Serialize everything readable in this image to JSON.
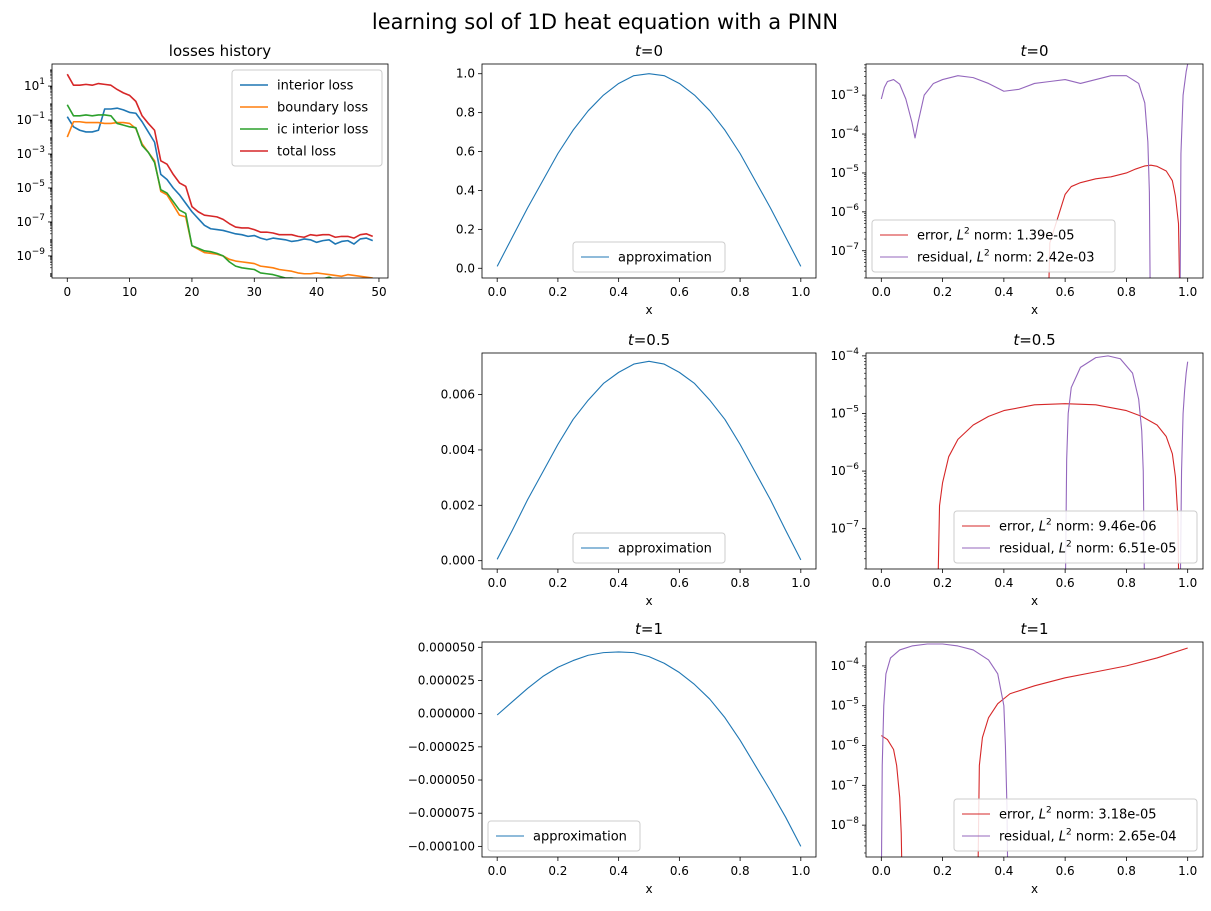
{
  "suptitle": "learning sol of 1D heat equation with a PINN",
  "colors": {
    "blue": "#1f77b4",
    "orange": "#ff7f0e",
    "green": "#2ca02c",
    "red": "#d62728",
    "purple": "#9467bd"
  },
  "chart_data": [
    {
      "id": "losses",
      "type": "line",
      "title": "losses history",
      "xlabel": "",
      "ylabel": "",
      "yscale": "log",
      "xlim": [
        -2.45,
        51.45
      ],
      "ylim_exp": [
        -10.3,
        2.3
      ],
      "xticks": [
        0,
        10,
        20,
        30,
        40,
        50
      ],
      "yticks_exp": [
        1,
        -1,
        -3,
        -5,
        -7,
        -9
      ],
      "legend_loc": "upper right",
      "grid": false,
      "series": [
        {
          "name": "interior loss",
          "color": "#1f77b4",
          "log10_values": [
            -0.8,
            -1.4,
            -1.6,
            -1.7,
            -1.7,
            -1.6,
            -0.35,
            -0.35,
            -0.3,
            -0.4,
            -0.55,
            -0.6,
            -1.1,
            -1.7,
            -2.3,
            -4.2,
            -4.5,
            -5.0,
            -5.4,
            -5.9,
            -6.4,
            -6.8,
            -7.2,
            -7.4,
            -7.45,
            -7.5,
            -7.6,
            -7.7,
            -7.75,
            -7.85,
            -7.8,
            -7.95,
            -8.05,
            -7.95,
            -8.0,
            -8.05,
            -8.15,
            -8.1,
            -8.0,
            -8.05,
            -8.2,
            -8.1,
            -8.05,
            -8.3,
            -8.15,
            -8.1,
            -8.3,
            -8.0,
            -7.95,
            -8.1
          ]
        },
        {
          "name": "boundary loss",
          "color": "#ff7f0e",
          "log10_values": [
            -2.0,
            -1.1,
            -1.1,
            -1.15,
            -1.15,
            -1.15,
            -1.2,
            -1.2,
            -1.15,
            -1.15,
            -1.2,
            -1.5,
            -2.4,
            -2.9,
            -3.4,
            -5.2,
            -5.4,
            -6.0,
            -6.6,
            -6.7,
            -8.4,
            -8.6,
            -8.8,
            -8.85,
            -8.9,
            -9.0,
            -9.2,
            -9.3,
            -9.35,
            -9.4,
            -9.45,
            -9.6,
            -9.65,
            -9.7,
            -9.8,
            -9.85,
            -9.9,
            -10.0,
            -10.05,
            -10.05,
            -10.0,
            -10.05,
            -10.1,
            -10.15,
            -10.2,
            -10.1,
            -10.15,
            -10.2,
            -10.25,
            -10.3
          ]
        },
        {
          "name": "ic interior loss",
          "color": "#2ca02c",
          "log10_values": [
            -0.1,
            -0.75,
            -0.75,
            -0.7,
            -0.75,
            -0.7,
            -0.7,
            -0.75,
            -1.2,
            -1.3,
            -1.4,
            -1.45,
            -2.5,
            -2.9,
            -3.5,
            -5.1,
            -5.3,
            -5.8,
            -6.3,
            -6.5,
            -8.4,
            -8.55,
            -8.7,
            -8.75,
            -8.85,
            -9.0,
            -9.35,
            -9.6,
            -9.7,
            -9.75,
            -9.8,
            -10.0,
            -10.05,
            -10.1,
            -10.2,
            -10.3,
            -10.3,
            -10.35,
            -10.45,
            -10.5,
            -10.45,
            -10.35,
            -10.25,
            -10.4,
            -10.55,
            -10.6,
            -10.6,
            -10.6,
            -10.55,
            -10.6
          ]
        },
        {
          "name": "total loss",
          "color": "#d62728",
          "log10_values": [
            1.7,
            1.05,
            1.05,
            1.1,
            1.05,
            1.15,
            1.1,
            1.05,
            0.8,
            0.6,
            0.45,
            0.1,
            -0.75,
            -1.2,
            -1.6,
            -3.4,
            -3.6,
            -4.2,
            -4.7,
            -4.9,
            -6.1,
            -6.4,
            -6.6,
            -6.65,
            -6.7,
            -6.85,
            -7.1,
            -7.3,
            -7.35,
            -7.35,
            -7.45,
            -7.6,
            -7.6,
            -7.65,
            -7.75,
            -7.75,
            -7.75,
            -7.85,
            -7.9,
            -7.75,
            -7.8,
            -7.75,
            -7.75,
            -7.9,
            -7.85,
            -7.85,
            -7.95,
            -7.75,
            -7.7,
            -7.85
          ]
        }
      ]
    },
    {
      "id": "approx_t0",
      "type": "line",
      "title_var": "t",
      "title_val": "=0",
      "xlabel": "x",
      "ylabel": "",
      "xlim": [
        -0.05,
        1.05
      ],
      "ylim": [
        -0.05,
        1.05
      ],
      "xticks": [
        0.0,
        0.2,
        0.4,
        0.6,
        0.8,
        1.0
      ],
      "yticks": [
        0.0,
        0.2,
        0.4,
        0.6,
        0.8,
        1.0
      ],
      "xtick_labels": [
        "0.0",
        "0.2",
        "0.4",
        "0.6",
        "0.8",
        "1.0"
      ],
      "ytick_labels": [
        "0.0",
        "0.2",
        "0.4",
        "0.6",
        "0.8",
        "1.0"
      ],
      "legend_loc": "lower center",
      "series": [
        {
          "name": "approximation",
          "color": "#1f77b4",
          "x": [
            0,
            0.05,
            0.1,
            0.15,
            0.2,
            0.25,
            0.3,
            0.35,
            0.4,
            0.45,
            0.5,
            0.55,
            0.6,
            0.65,
            0.7,
            0.75,
            0.8,
            0.85,
            0.9,
            0.95,
            1.0
          ],
          "y": [
            0.01,
            0.16,
            0.31,
            0.45,
            0.59,
            0.71,
            0.81,
            0.89,
            0.95,
            0.99,
            1.0,
            0.99,
            0.95,
            0.89,
            0.81,
            0.71,
            0.59,
            0.45,
            0.31,
            0.16,
            0.01
          ]
        }
      ]
    },
    {
      "id": "approx_t05",
      "type": "line",
      "title_var": "t",
      "title_val": "=0.5",
      "xlabel": "x",
      "ylabel": "",
      "xlim": [
        -0.05,
        1.05
      ],
      "ylim": [
        -0.0003,
        0.0075
      ],
      "xticks": [
        0.0,
        0.2,
        0.4,
        0.6,
        0.8,
        1.0
      ],
      "yticks": [
        0.0,
        0.002,
        0.004,
        0.006
      ],
      "xtick_labels": [
        "0.0",
        "0.2",
        "0.4",
        "0.6",
        "0.8",
        "1.0"
      ],
      "ytick_labels": [
        "0.000",
        "0.002",
        "0.004",
        "0.006"
      ],
      "legend_loc": "lower center",
      "series": [
        {
          "name": "approximation",
          "color": "#1f77b4",
          "x": [
            0,
            0.05,
            0.1,
            0.15,
            0.2,
            0.25,
            0.3,
            0.35,
            0.4,
            0.45,
            0.5,
            0.55,
            0.6,
            0.65,
            0.7,
            0.75,
            0.8,
            0.85,
            0.9,
            0.95,
            1.0
          ],
          "y": [
            5e-05,
            0.0011,
            0.0022,
            0.0032,
            0.0042,
            0.0051,
            0.0058,
            0.0064,
            0.0068,
            0.0071,
            0.0072,
            0.0071,
            0.0068,
            0.0064,
            0.0058,
            0.0051,
            0.0042,
            0.0032,
            0.0022,
            0.0011,
            3e-05
          ]
        }
      ]
    },
    {
      "id": "approx_t1",
      "type": "line",
      "title_var": "t",
      "title_val": "=1",
      "xlabel": "x",
      "ylabel": "",
      "xlim": [
        -0.05,
        1.05
      ],
      "ylim": [
        -0.000108,
        5.4e-05
      ],
      "xticks": [
        0.0,
        0.2,
        0.4,
        0.6,
        0.8,
        1.0
      ],
      "yticks": [
        5e-05,
        2.5e-05,
        0.0,
        -2.5e-05,
        -5e-05,
        -7.5e-05,
        -0.0001
      ],
      "xtick_labels": [
        "0.0",
        "0.2",
        "0.4",
        "0.6",
        "0.8",
        "1.0"
      ],
      "ytick_labels": [
        "0.000050",
        "0.000025",
        "0.000000",
        "−0.000025",
        "−0.000050",
        "−0.000075",
        "−0.000100"
      ],
      "legend_loc": "lower left",
      "series": [
        {
          "name": "approximation",
          "color": "#1f77b4",
          "x": [
            0,
            0.05,
            0.1,
            0.15,
            0.2,
            0.25,
            0.3,
            0.35,
            0.4,
            0.45,
            0.5,
            0.55,
            0.6,
            0.65,
            0.7,
            0.75,
            0.8,
            0.85,
            0.9,
            0.95,
            1.0
          ],
          "y": [
            -1e-06,
            9e-06,
            1.9e-05,
            2.8e-05,
            3.5e-05,
            4e-05,
            4.4e-05,
            4.6e-05,
            4.65e-05,
            4.6e-05,
            4.3e-05,
            3.8e-05,
            3.1e-05,
            2.2e-05,
            1.1e-05,
            -3e-06,
            -2e-05,
            -3.9e-05,
            -5.8e-05,
            -7.8e-05,
            -0.0001
          ]
        }
      ]
    },
    {
      "id": "err_t0",
      "type": "line",
      "yscale": "log",
      "title_var": "t",
      "title_val": "=0",
      "xlabel": "x",
      "ylabel": "",
      "xlim": [
        -0.05,
        1.05
      ],
      "ylim_exp": [
        -7.7,
        -2.2
      ],
      "xticks": [
        0.0,
        0.2,
        0.4,
        0.6,
        0.8,
        1.0
      ],
      "xtick_labels": [
        "0.0",
        "0.2",
        "0.4",
        "0.6",
        "0.8",
        "1.0"
      ],
      "yticks_exp": [
        -3,
        -4,
        -5,
        -6,
        -7
      ],
      "legend_loc": "lower left",
      "series": [
        {
          "name": "error",
          "norm_label": "norm: 1.39e-05",
          "color": "#d62728",
          "x": [
            0.545,
            0.55,
            0.57,
            0.6,
            0.62,
            0.65,
            0.7,
            0.75,
            0.8,
            0.83,
            0.86,
            0.88,
            0.9,
            0.93,
            0.95,
            0.96,
            0.97,
            0.975
          ],
          "log10_y": [
            -8.5,
            -6.8,
            -6.3,
            -5.55,
            -5.35,
            -5.25,
            -5.15,
            -5.1,
            -5.0,
            -4.9,
            -4.82,
            -4.8,
            -4.83,
            -4.95,
            -5.2,
            -5.6,
            -6.3,
            -8.5
          ]
        },
        {
          "name": "residual",
          "norm_label": "norm: 2.42e-03",
          "color": "#9467bd",
          "x": [
            0.0,
            0.01,
            0.02,
            0.04,
            0.06,
            0.08,
            0.1,
            0.11,
            0.12,
            0.14,
            0.17,
            0.2,
            0.25,
            0.3,
            0.35,
            0.4,
            0.45,
            0.5,
            0.55,
            0.6,
            0.65,
            0.7,
            0.75,
            0.8,
            0.84,
            0.86,
            0.87,
            0.875,
            0.878,
            null,
            0.975,
            0.978,
            0.985,
            0.995,
            1.0
          ],
          "log10_y": [
            -3.1,
            -2.8,
            -2.65,
            -2.6,
            -2.72,
            -3.1,
            -3.7,
            -4.1,
            -3.7,
            -3.0,
            -2.7,
            -2.6,
            -2.5,
            -2.55,
            -2.7,
            -2.9,
            -2.85,
            -2.7,
            -2.65,
            -2.6,
            -2.7,
            -2.6,
            -2.5,
            -2.5,
            -2.7,
            -3.2,
            -4.2,
            -5.5,
            -8.5,
            null,
            -8.5,
            -4.5,
            -3.0,
            -2.4,
            -2.2
          ]
        }
      ]
    },
    {
      "id": "err_t05",
      "type": "line",
      "yscale": "log",
      "title_var": "t",
      "title_val": "=0.5",
      "xlabel": "x",
      "ylabel": "",
      "xlim": [
        -0.05,
        1.05
      ],
      "ylim_exp": [
        -7.7,
        -3.95
      ],
      "xticks": [
        0.0,
        0.2,
        0.4,
        0.6,
        0.8,
        1.0
      ],
      "xtick_labels": [
        "0.0",
        "0.2",
        "0.4",
        "0.6",
        "0.8",
        "1.0"
      ],
      "yticks_exp": [
        -4,
        -5,
        -6,
        -7
      ],
      "legend_loc": "lower right",
      "series": [
        {
          "name": "error",
          "norm_label": "norm: 9.46e-06",
          "color": "#d62728",
          "x": [
            0.183,
            0.19,
            0.2,
            0.22,
            0.25,
            0.3,
            0.35,
            0.4,
            0.5,
            0.6,
            0.7,
            0.8,
            0.85,
            0.9,
            0.93,
            0.95,
            0.96,
            0.968,
            0.972
          ],
          "log10_y": [
            -8.5,
            -6.6,
            -6.2,
            -5.75,
            -5.45,
            -5.2,
            -5.05,
            -4.95,
            -4.85,
            -4.83,
            -4.85,
            -4.95,
            -5.05,
            -5.2,
            -5.4,
            -5.7,
            -6.1,
            -6.8,
            -8.5
          ]
        },
        {
          "name": "residual",
          "norm_label": "norm: 6.51e-05",
          "color": "#9467bd",
          "x": [
            0.6,
            0.605,
            0.61,
            0.62,
            0.65,
            0.7,
            0.74,
            0.78,
            0.82,
            0.84,
            0.85,
            0.855,
            0.86,
            null,
            0.975,
            0.98,
            0.985,
            0.99,
            0.995,
            1.0
          ],
          "log10_y": [
            -8.5,
            -5.8,
            -5.0,
            -4.55,
            -4.2,
            -4.03,
            -4.0,
            -4.05,
            -4.3,
            -4.75,
            -5.3,
            -6.0,
            -8.5,
            null,
            -8.5,
            -6.0,
            -5.0,
            -4.6,
            -4.3,
            -4.1
          ]
        }
      ]
    },
    {
      "id": "err_t1",
      "type": "line",
      "yscale": "log",
      "title_var": "t",
      "title_val": "=1",
      "xlabel": "x",
      "ylabel": "",
      "xlim": [
        -0.05,
        1.05
      ],
      "ylim_exp": [
        -8.8,
        -3.4
      ],
      "xticks": [
        0.0,
        0.2,
        0.4,
        0.6,
        0.8,
        1.0
      ],
      "xtick_labels": [
        "0.0",
        "0.2",
        "0.4",
        "0.6",
        "0.8",
        "1.0"
      ],
      "yticks_exp": [
        -4,
        -5,
        -6,
        -7,
        -8
      ],
      "legend_loc": "lower right",
      "series": [
        {
          "name": "error",
          "norm_label": "norm: 3.18e-05",
          "color": "#d62728",
          "x": [
            0.0,
            0.02,
            0.04,
            0.05,
            0.06,
            0.065,
            0.068,
            null,
            0.315,
            0.32,
            0.33,
            0.35,
            0.38,
            0.42,
            0.5,
            0.6,
            0.7,
            0.8,
            0.9,
            1.0
          ],
          "log10_y": [
            -5.75,
            -5.85,
            -6.1,
            -6.5,
            -7.3,
            -8.2,
            -9.5,
            null,
            -9.5,
            -6.5,
            -5.8,
            -5.3,
            -4.95,
            -4.7,
            -4.5,
            -4.3,
            -4.15,
            -4.0,
            -3.8,
            -3.55
          ]
        },
        {
          "name": "residual",
          "norm_label": "norm: 2.65e-04",
          "color": "#9467bd",
          "x": [
            0.0,
            0.003,
            0.008,
            0.015,
            0.03,
            0.06,
            0.1,
            0.15,
            0.2,
            0.25,
            0.3,
            0.35,
            0.38,
            0.4,
            0.405,
            0.41,
            0.413
          ],
          "log10_y": [
            -9.5,
            -6.5,
            -5.0,
            -4.2,
            -3.8,
            -3.6,
            -3.5,
            -3.45,
            -3.45,
            -3.5,
            -3.6,
            -3.85,
            -4.2,
            -5.0,
            -6.0,
            -7.5,
            -9.5
          ]
        }
      ]
    }
  ]
}
